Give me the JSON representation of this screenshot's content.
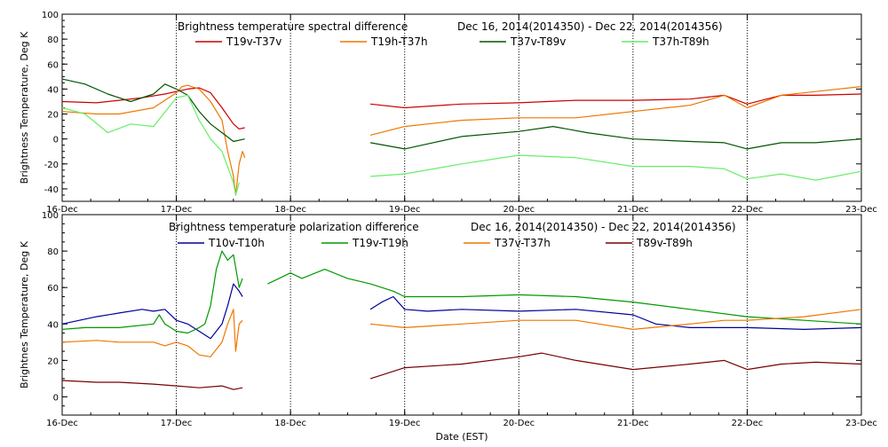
{
  "chart_data": [
    {
      "type": "line",
      "title": "Brightness temperature spectral difference",
      "date_range": "Dec 16, 2014(2014350)  - Dec 22, 2014(2014356)",
      "xlabel": "",
      "ylabel": "Brightness Temperature, Deg K",
      "xlim": [
        0,
        7
      ],
      "ylim": [
        -50,
        100
      ],
      "yticks": [
        -40,
        -20,
        0,
        20,
        40,
        60,
        80,
        100
      ],
      "x_tick_labels": [
        "16-Dec",
        "17-Dec",
        "18-Dec",
        "19-Dec",
        "20-Dec",
        "21-Dec",
        "22-Dec",
        "23-Dec"
      ],
      "grid": "dotted vertical at day boundaries",
      "series": [
        {
          "name": "T19v-T37v",
          "color": "#cc0000",
          "segments": [
            [
              [
                0,
                30
              ],
              [
                0.3,
                29
              ],
              [
                0.5,
                31
              ],
              [
                0.7,
                33
              ],
              [
                0.9,
                36
              ],
              [
                1.0,
                38
              ],
              [
                1.1,
                40
              ],
              [
                1.2,
                41
              ],
              [
                1.3,
                37
              ],
              [
                1.4,
                25
              ],
              [
                1.5,
                12
              ],
              [
                1.55,
                8
              ],
              [
                1.6,
                9
              ]
            ],
            [
              [
                2.7,
                28
              ],
              [
                3.0,
                25
              ],
              [
                3.5,
                28
              ],
              [
                4.0,
                29
              ],
              [
                4.5,
                31
              ],
              [
                5.0,
                31
              ],
              [
                5.5,
                32
              ],
              [
                5.8,
                35
              ],
              [
                6.0,
                28
              ],
              [
                6.3,
                35
              ],
              [
                6.6,
                35
              ],
              [
                7.0,
                36
              ]
            ]
          ]
        },
        {
          "name": "T19h-T37h",
          "color": "#ee7700",
          "segments": [
            [
              [
                0,
                22
              ],
              [
                0.3,
                20
              ],
              [
                0.5,
                20
              ],
              [
                0.8,
                25
              ],
              [
                1.0,
                37
              ],
              [
                1.05,
                42
              ],
              [
                1.1,
                43
              ],
              [
                1.2,
                40
              ],
              [
                1.3,
                30
              ],
              [
                1.4,
                15
              ],
              [
                1.45,
                -10
              ],
              [
                1.5,
                -30
              ],
              [
                1.52,
                -45
              ],
              [
                1.55,
                -20
              ],
              [
                1.58,
                -10
              ],
              [
                1.6,
                -15
              ]
            ],
            [
              [
                2.7,
                3
              ],
              [
                3.0,
                10
              ],
              [
                3.5,
                15
              ],
              [
                4.0,
                17
              ],
              [
                4.5,
                17
              ],
              [
                5.0,
                22
              ],
              [
                5.5,
                27
              ],
              [
                5.8,
                35
              ],
              [
                6.0,
                25
              ],
              [
                6.3,
                35
              ],
              [
                6.6,
                38
              ],
              [
                7.0,
                42
              ]
            ]
          ]
        },
        {
          "name": "T37v-T89v",
          "color": "#005500",
          "segments": [
            [
              [
                0,
                48
              ],
              [
                0.2,
                44
              ],
              [
                0.4,
                36
              ],
              [
                0.6,
                30
              ],
              [
                0.8,
                36
              ],
              [
                0.9,
                44
              ],
              [
                1.0,
                40
              ],
              [
                1.1,
                35
              ],
              [
                1.2,
                22
              ],
              [
                1.3,
                12
              ],
              [
                1.4,
                5
              ],
              [
                1.5,
                -2
              ],
              [
                1.6,
                0
              ]
            ],
            [
              [
                2.7,
                -3
              ],
              [
                3.0,
                -8
              ],
              [
                3.5,
                2
              ],
              [
                4.0,
                6
              ],
              [
                4.3,
                10
              ],
              [
                4.6,
                5
              ],
              [
                5.0,
                0
              ],
              [
                5.5,
                -2
              ],
              [
                5.8,
                -3
              ],
              [
                6.0,
                -8
              ],
              [
                6.3,
                -3
              ],
              [
                6.6,
                -3
              ],
              [
                7.0,
                0
              ]
            ]
          ]
        },
        {
          "name": "T37h-T89h",
          "color": "#66ee66",
          "segments": [
            [
              [
                0,
                25
              ],
              [
                0.2,
                20
              ],
              [
                0.4,
                5
              ],
              [
                0.6,
                12
              ],
              [
                0.8,
                10
              ],
              [
                1.0,
                33
              ],
              [
                1.1,
                35
              ],
              [
                1.2,
                15
              ],
              [
                1.3,
                0
              ],
              [
                1.4,
                -10
              ],
              [
                1.5,
                -35
              ],
              [
                1.52,
                -45
              ],
              [
                1.55,
                -35
              ]
            ],
            [
              [
                2.7,
                -30
              ],
              [
                3.0,
                -28
              ],
              [
                3.5,
                -20
              ],
              [
                4.0,
                -13
              ],
              [
                4.5,
                -15
              ],
              [
                5.0,
                -22
              ],
              [
                5.5,
                -22
              ],
              [
                5.8,
                -24
              ],
              [
                6.0,
                -32
              ],
              [
                6.3,
                -28
              ],
              [
                6.6,
                -33
              ],
              [
                7.0,
                -26
              ]
            ]
          ]
        }
      ],
      "legend": "top inside, horizontal"
    },
    {
      "type": "line",
      "title": "Brightness temperature polarization difference",
      "date_range": "Dec 16, 2014(2014350)  - Dec 22, 2014(2014356)",
      "xlabel": "Date (EST)",
      "ylabel": "Brightnes Temperature, Deg K",
      "xlim": [
        0,
        7
      ],
      "ylim": [
        -10,
        100
      ],
      "yticks": [
        0,
        20,
        40,
        60,
        80,
        100
      ],
      "x_tick_labels": [
        "16-Dec",
        "17-Dec",
        "18-Dec",
        "19-Dec",
        "20-Dec",
        "21-Dec",
        "22-Dec",
        "23-Dec"
      ],
      "grid": "dotted vertical at day boundaries",
      "series": [
        {
          "name": "T10v-T10h",
          "color": "#000099",
          "segments": [
            [
              [
                0,
                40
              ],
              [
                0.3,
                44
              ],
              [
                0.5,
                46
              ],
              [
                0.7,
                48
              ],
              [
                0.8,
                47
              ],
              [
                0.9,
                48
              ],
              [
                1.0,
                42
              ],
              [
                1.1,
                40
              ],
              [
                1.2,
                36
              ],
              [
                1.3,
                32
              ],
              [
                1.4,
                40
              ],
              [
                1.45,
                50
              ],
              [
                1.5,
                62
              ],
              [
                1.55,
                58
              ],
              [
                1.58,
                55
              ]
            ],
            [
              [
                2.7,
                48
              ],
              [
                2.8,
                52
              ],
              [
                2.9,
                55
              ],
              [
                3.0,
                48
              ],
              [
                3.2,
                47
              ],
              [
                3.5,
                48
              ],
              [
                4.0,
                47
              ],
              [
                4.5,
                48
              ],
              [
                5.0,
                45
              ],
              [
                5.2,
                40
              ],
              [
                5.5,
                38
              ],
              [
                6.0,
                38
              ],
              [
                6.5,
                37
              ],
              [
                7.0,
                38
              ]
            ]
          ]
        },
        {
          "name": "T19v-T19h",
          "color": "#009900",
          "segments": [
            [
              [
                0,
                37
              ],
              [
                0.2,
                38
              ],
              [
                0.5,
                38
              ],
              [
                0.8,
                40
              ],
              [
                0.85,
                45
              ],
              [
                0.9,
                40
              ],
              [
                1.0,
                36
              ],
              [
                1.1,
                35
              ],
              [
                1.2,
                38
              ],
              [
                1.25,
                40
              ],
              [
                1.3,
                50
              ],
              [
                1.35,
                70
              ],
              [
                1.4,
                80
              ],
              [
                1.45,
                75
              ],
              [
                1.5,
                78
              ],
              [
                1.55,
                60
              ],
              [
                1.58,
                65
              ]
            ],
            [
              [
                1.8,
                62
              ],
              [
                1.9,
                65
              ],
              [
                2.0,
                68
              ],
              [
                2.1,
                65
              ],
              [
                2.3,
                70
              ],
              [
                2.5,
                65
              ],
              [
                2.7,
                62
              ],
              [
                2.9,
                58
              ],
              [
                3.0,
                55
              ],
              [
                3.5,
                55
              ],
              [
                4.0,
                56
              ],
              [
                4.5,
                55
              ],
              [
                5.0,
                52
              ],
              [
                5.5,
                48
              ],
              [
                6.0,
                44
              ],
              [
                6.5,
                42
              ],
              [
                7.0,
                40
              ]
            ]
          ]
        },
        {
          "name": "T37v-T37h",
          "color": "#ee7700",
          "segments": [
            [
              [
                0,
                30
              ],
              [
                0.3,
                31
              ],
              [
                0.5,
                30
              ],
              [
                0.8,
                30
              ],
              [
                0.9,
                28
              ],
              [
                1.0,
                30
              ],
              [
                1.1,
                28
              ],
              [
                1.2,
                23
              ],
              [
                1.3,
                22
              ],
              [
                1.4,
                30
              ],
              [
                1.45,
                40
              ],
              [
                1.5,
                48
              ],
              [
                1.52,
                25
              ],
              [
                1.55,
                40
              ],
              [
                1.58,
                42
              ]
            ],
            [
              [
                2.7,
                40
              ],
              [
                3.0,
                38
              ],
              [
                3.5,
                40
              ],
              [
                4.0,
                42
              ],
              [
                4.5,
                42
              ],
              [
                5.0,
                37
              ],
              [
                5.5,
                40
              ],
              [
                5.8,
                42
              ],
              [
                6.0,
                42
              ],
              [
                6.5,
                44
              ],
              [
                7.0,
                48
              ]
            ]
          ]
        },
        {
          "name": "T89v-T89h",
          "color": "#770000",
          "segments": [
            [
              [
                0,
                9
              ],
              [
                0.3,
                8
              ],
              [
                0.5,
                8
              ],
              [
                0.8,
                7
              ],
              [
                1.0,
                6
              ],
              [
                1.2,
                5
              ],
              [
                1.4,
                6
              ],
              [
                1.5,
                4
              ],
              [
                1.58,
                5
              ]
            ],
            [
              [
                2.7,
                10
              ],
              [
                2.8,
                12
              ],
              [
                3.0,
                16
              ],
              [
                3.5,
                18
              ],
              [
                4.0,
                22
              ],
              [
                4.2,
                24
              ],
              [
                4.5,
                20
              ],
              [
                5.0,
                15
              ],
              [
                5.5,
                18
              ],
              [
                5.8,
                20
              ],
              [
                6.0,
                15
              ],
              [
                6.3,
                18
              ],
              [
                6.6,
                19
              ],
              [
                7.0,
                18
              ]
            ]
          ]
        }
      ],
      "legend": "top inside, horizontal"
    }
  ]
}
